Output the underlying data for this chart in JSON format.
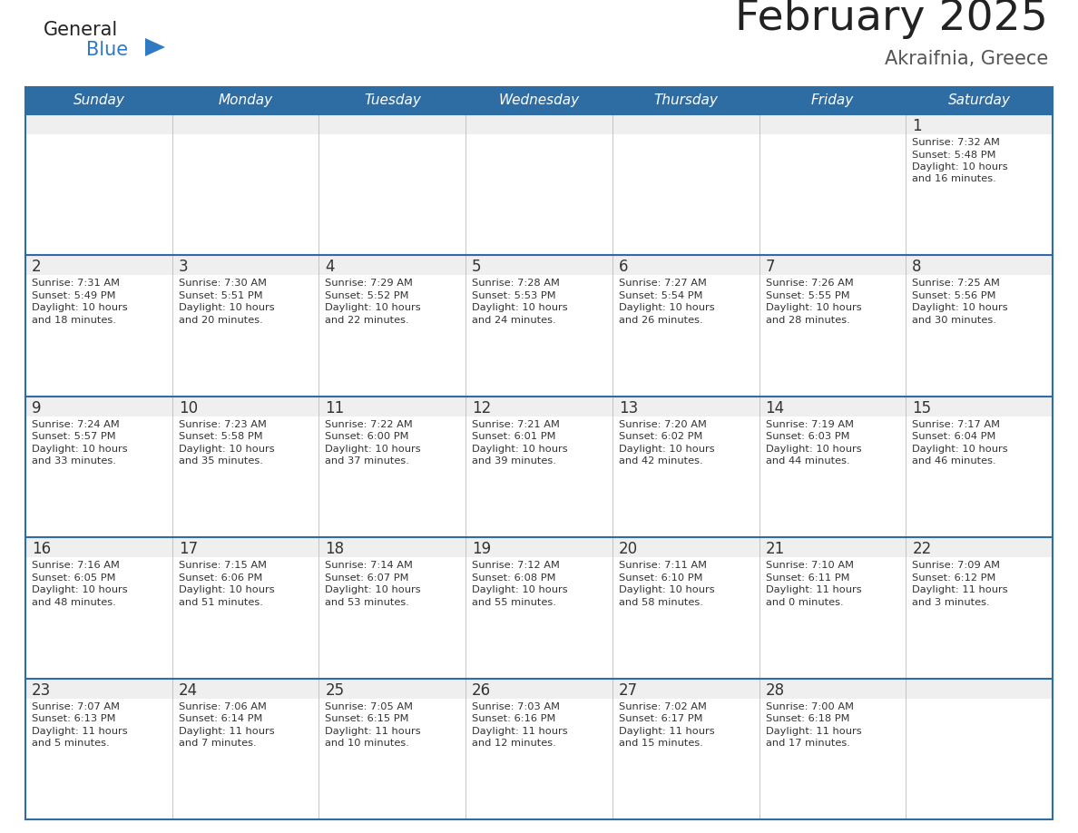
{
  "title": "February 2025",
  "subtitle": "Akraifnia, Greece",
  "days_of_week": [
    "Sunday",
    "Monday",
    "Tuesday",
    "Wednesday",
    "Thursday",
    "Friday",
    "Saturday"
  ],
  "header_bg_color": "#2E6DA4",
  "header_text_color": "#FFFFFF",
  "cell_bg_color": "#FFFFFF",
  "cell_daynum_bg": "#EFEFEF",
  "grid_line_color": "#2E6DA4",
  "day_number_color": "#333333",
  "info_text_color": "#333333",
  "background_color": "#FFFFFF",
  "title_color": "#222222",
  "subtitle_color": "#555555",
  "logo_general_color": "#222222",
  "logo_blue_color": "#2E7BC4",
  "calendar_data": [
    [
      null,
      null,
      null,
      null,
      null,
      null,
      {
        "day": 1,
        "sunrise": "7:32 AM",
        "sunset": "5:48 PM",
        "daylight": "10 hours and 16 minutes."
      }
    ],
    [
      {
        "day": 2,
        "sunrise": "7:31 AM",
        "sunset": "5:49 PM",
        "daylight": "10 hours and 18 minutes."
      },
      {
        "day": 3,
        "sunrise": "7:30 AM",
        "sunset": "5:51 PM",
        "daylight": "10 hours and 20 minutes."
      },
      {
        "day": 4,
        "sunrise": "7:29 AM",
        "sunset": "5:52 PM",
        "daylight": "10 hours and 22 minutes."
      },
      {
        "day": 5,
        "sunrise": "7:28 AM",
        "sunset": "5:53 PM",
        "daylight": "10 hours and 24 minutes."
      },
      {
        "day": 6,
        "sunrise": "7:27 AM",
        "sunset": "5:54 PM",
        "daylight": "10 hours and 26 minutes."
      },
      {
        "day": 7,
        "sunrise": "7:26 AM",
        "sunset": "5:55 PM",
        "daylight": "10 hours and 28 minutes."
      },
      {
        "day": 8,
        "sunrise": "7:25 AM",
        "sunset": "5:56 PM",
        "daylight": "10 hours and 30 minutes."
      }
    ],
    [
      {
        "day": 9,
        "sunrise": "7:24 AM",
        "sunset": "5:57 PM",
        "daylight": "10 hours and 33 minutes."
      },
      {
        "day": 10,
        "sunrise": "7:23 AM",
        "sunset": "5:58 PM",
        "daylight": "10 hours and 35 minutes."
      },
      {
        "day": 11,
        "sunrise": "7:22 AM",
        "sunset": "6:00 PM",
        "daylight": "10 hours and 37 minutes."
      },
      {
        "day": 12,
        "sunrise": "7:21 AM",
        "sunset": "6:01 PM",
        "daylight": "10 hours and 39 minutes."
      },
      {
        "day": 13,
        "sunrise": "7:20 AM",
        "sunset": "6:02 PM",
        "daylight": "10 hours and 42 minutes."
      },
      {
        "day": 14,
        "sunrise": "7:19 AM",
        "sunset": "6:03 PM",
        "daylight": "10 hours and 44 minutes."
      },
      {
        "day": 15,
        "sunrise": "7:17 AM",
        "sunset": "6:04 PM",
        "daylight": "10 hours and 46 minutes."
      }
    ],
    [
      {
        "day": 16,
        "sunrise": "7:16 AM",
        "sunset": "6:05 PM",
        "daylight": "10 hours and 48 minutes."
      },
      {
        "day": 17,
        "sunrise": "7:15 AM",
        "sunset": "6:06 PM",
        "daylight": "10 hours and 51 minutes."
      },
      {
        "day": 18,
        "sunrise": "7:14 AM",
        "sunset": "6:07 PM",
        "daylight": "10 hours and 53 minutes."
      },
      {
        "day": 19,
        "sunrise": "7:12 AM",
        "sunset": "6:08 PM",
        "daylight": "10 hours and 55 minutes."
      },
      {
        "day": 20,
        "sunrise": "7:11 AM",
        "sunset": "6:10 PM",
        "daylight": "10 hours and 58 minutes."
      },
      {
        "day": 21,
        "sunrise": "7:10 AM",
        "sunset": "6:11 PM",
        "daylight": "11 hours and 0 minutes."
      },
      {
        "day": 22,
        "sunrise": "7:09 AM",
        "sunset": "6:12 PM",
        "daylight": "11 hours and 3 minutes."
      }
    ],
    [
      {
        "day": 23,
        "sunrise": "7:07 AM",
        "sunset": "6:13 PM",
        "daylight": "11 hours and 5 minutes."
      },
      {
        "day": 24,
        "sunrise": "7:06 AM",
        "sunset": "6:14 PM",
        "daylight": "11 hours and 7 minutes."
      },
      {
        "day": 25,
        "sunrise": "7:05 AM",
        "sunset": "6:15 PM",
        "daylight": "11 hours and 10 minutes."
      },
      {
        "day": 26,
        "sunrise": "7:03 AM",
        "sunset": "6:16 PM",
        "daylight": "11 hours and 12 minutes."
      },
      {
        "day": 27,
        "sunrise": "7:02 AM",
        "sunset": "6:17 PM",
        "daylight": "11 hours and 15 minutes."
      },
      {
        "day": 28,
        "sunrise": "7:00 AM",
        "sunset": "6:18 PM",
        "daylight": "11 hours and 17 minutes."
      },
      null
    ]
  ]
}
